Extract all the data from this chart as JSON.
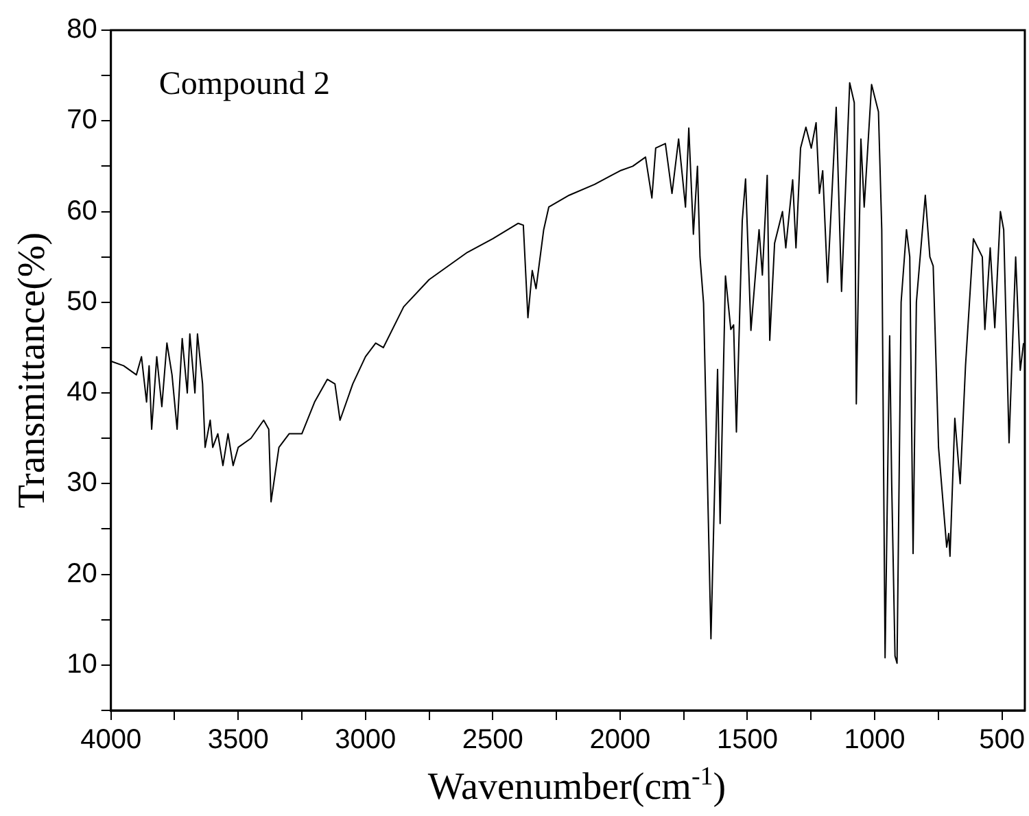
{
  "chart_data": {
    "type": "line",
    "xlabel": "Wavenumber(cm$^{-1}$)",
    "ylabel": "Transmittance(%)",
    "annotations": [
      "Compound 2"
    ],
    "xlim": [
      4000,
      410
    ],
    "ylim": [
      5,
      80
    ],
    "xticks": [
      4000,
      {
        "value": 3750,
        "label": null
      },
      3500,
      {
        "value": 3250,
        "label": null
      },
      3000,
      {
        "value": 2750,
        "label": null
      },
      2500,
      {
        "value": 2250,
        "label": null
      },
      2000,
      {
        "value": 1750,
        "label": null
      },
      1500,
      {
        "value": 1250,
        "label": null
      },
      1000,
      {
        "value": 750,
        "label": null
      },
      500
    ],
    "yticks": [
      {
        "value": 5,
        "label": null
      },
      10,
      {
        "value": 15,
        "label": null
      },
      20,
      {
        "value": 25,
        "label": null
      },
      30,
      {
        "value": 35,
        "label": null
      },
      40,
      {
        "value": 45,
        "label": null
      },
      50,
      {
        "value": 55,
        "label": null
      },
      60,
      {
        "value": 65,
        "label": null
      },
      70,
      {
        "value": 75,
        "label": null
      },
      80
    ],
    "grid": false,
    "legend": false,
    "marker": "none",
    "line_style": "solid",
    "series": [
      {
        "color": "#000000",
        "x": [
          4000,
          3950,
          3900,
          3880,
          3860,
          3850,
          3840,
          3820,
          3800,
          3780,
          3760,
          3740,
          3720,
          3700,
          3690,
          3670,
          3660,
          3640,
          3630,
          3610,
          3600,
          3580,
          3560,
          3540,
          3520,
          3500,
          3450,
          3400,
          3380,
          3371,
          3340,
          3300,
          3250,
          3200,
          3150,
          3120,
          3100,
          3050,
          3000,
          2960,
          2930,
          2850,
          2750,
          2600,
          2500,
          2400,
          2380,
          2362,
          2345,
          2330,
          2300,
          2280,
          2200,
          2100,
          2000,
          1950,
          1900,
          1875,
          1860,
          1822,
          1796,
          1770,
          1743,
          1730,
          1712,
          1696,
          1686,
          1672,
          1643,
          1617,
          1607,
          1586,
          1565,
          1554,
          1543,
          1520,
          1507,
          1486,
          1454,
          1441,
          1422,
          1412,
          1393,
          1362,
          1349,
          1322,
          1309,
          1291,
          1270,
          1249,
          1230,
          1217,
          1204,
          1185,
          1151,
          1130,
          1098,
          1080,
          1072,
          1054,
          1041,
          1012,
          985,
          972,
          959,
          941,
          933,
          920,
          912,
          896,
          875,
          862,
          849,
          836,
          801,
          783,
          770,
          749,
          717,
          709,
          704,
          685,
          664,
          643,
          612,
          577,
          567,
          546,
          528,
          506,
          493,
          472,
          446,
          428,
          415
        ],
        "values": [
          43.5,
          43,
          42,
          44,
          39,
          43,
          36,
          44,
          38.5,
          45.5,
          42,
          36,
          46,
          40,
          46.5,
          40,
          46.5,
          41,
          34,
          37,
          34,
          35.5,
          32,
          35.5,
          32,
          34,
          35,
          37,
          36,
          28,
          34,
          35.5,
          35.5,
          39,
          41.5,
          41,
          37,
          41,
          44,
          45.5,
          45,
          49.5,
          52.5,
          55.5,
          57,
          58.7,
          58.5,
          48.3,
          53.5,
          51.5,
          58,
          60.5,
          61.8,
          63,
          64.5,
          65,
          66,
          61.5,
          67,
          67.5,
          62,
          68,
          60.5,
          69.2,
          57.5,
          65,
          55,
          49.9,
          12.9,
          42.6,
          25.6,
          52.9,
          47,
          47.5,
          35.7,
          59,
          63.6,
          46.9,
          58,
          53,
          64,
          45.8,
          56.5,
          60,
          56,
          63.5,
          56,
          67,
          69.3,
          67,
          69.8,
          62,
          64.5,
          52.2,
          71.5,
          51.2,
          74.2,
          72,
          38.8,
          68,
          60.5,
          74,
          71,
          58,
          10.8,
          46.3,
          30,
          11,
          10.2,
          50,
          58,
          55,
          22.3,
          50,
          61.8,
          55,
          54,
          34,
          23,
          24.5,
          22,
          37.2,
          30,
          43,
          57,
          55,
          47,
          56,
          47.2,
          60,
          58,
          34.5,
          55,
          42.5,
          45.5
        ]
      }
    ]
  }
}
